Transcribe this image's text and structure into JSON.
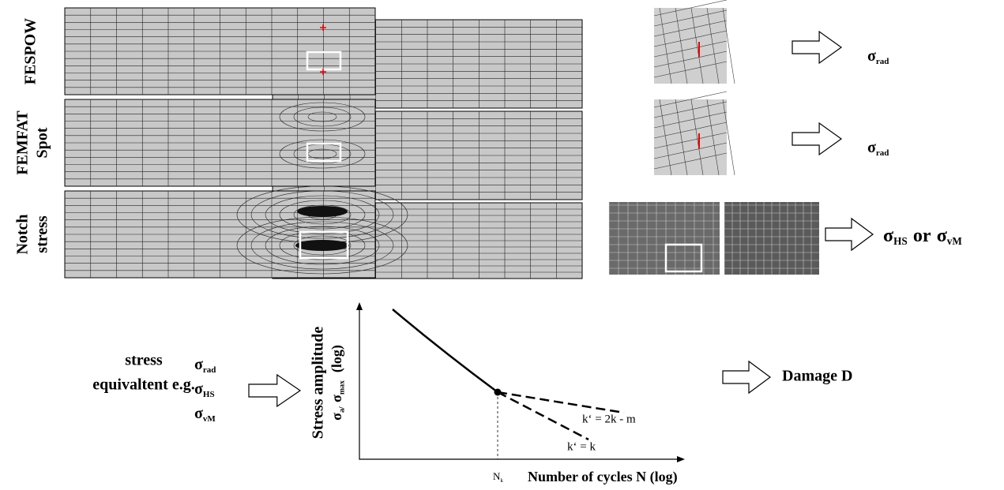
{
  "rows": [
    {
      "label": [
        "FESPOW"
      ],
      "result": [
        {
          "text": "σ",
          "subscript": "rad"
        }
      ]
    },
    {
      "label": [
        "FEMFAT",
        "Spot"
      ],
      "result": [
        {
          "text": "σ",
          "subscript": "rad"
        }
      ]
    },
    {
      "label": [
        "Notch",
        "stress"
      ],
      "result": [
        {
          "text": "σ",
          "subscript": "HS"
        },
        {
          "text": "or"
        },
        {
          "text": "σ",
          "subscript": "vM"
        }
      ]
    }
  ],
  "input": {
    "label": [
      "stress",
      "equivaltent e.g."
    ],
    "values": [
      [
        {
          "text": "σ",
          "subscript": "rad"
        }
      ],
      [
        {
          "text": "σ",
          "subscript": "HS"
        }
      ],
      [
        {
          "text": "σ",
          "subscript": "vM"
        }
      ]
    ]
  },
  "graph": {
    "y_label": "Stress amplitude",
    "y_sublabel": [
      {
        "text": "σ",
        "subscript": "a/"
      },
      {
        "text": "σ",
        "subscript": "max"
      },
      {
        "text": " (log)"
      }
    ],
    "x_label": "Number of cycles N (log)",
    "knee": [
      {
        "text": "N",
        "subscript": "k"
      }
    ],
    "slopes": [
      "k‘ = 2k - m",
      "k‘ = k"
    ]
  },
  "output": "Damage D"
}
